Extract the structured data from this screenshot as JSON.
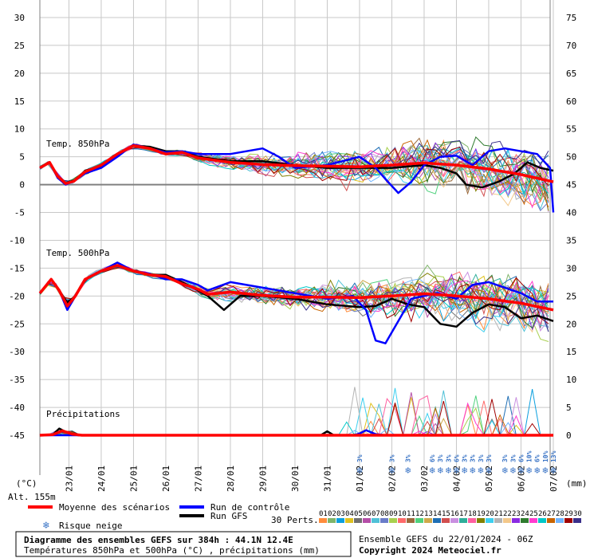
{
  "chart_data": {
    "type": "line",
    "title": "Diagramme des ensembles GEFS sur 384h : 44.1N 12.4E",
    "subtitle": "Températures 850hPa et 500hPa (°C) , précipitations (mm)",
    "left_axis_unit": "(°C)",
    "right_axis_unit": "(mm)",
    "altitude": "Alt. 155m",
    "left_ticks": [
      30,
      25,
      20,
      15,
      10,
      5,
      0,
      -5,
      -10,
      -15,
      -20,
      -25,
      -30,
      -35,
      -40,
      -45
    ],
    "right_ticks": [
      75,
      70,
      65,
      60,
      55,
      50,
      45,
      40,
      35,
      30,
      25,
      20,
      15,
      10,
      5,
      0
    ],
    "ylim": [
      -45,
      30
    ],
    "x_dates": [
      "23/01",
      "24/01",
      "25/01",
      "26/01",
      "27/01",
      "28/01",
      "29/01",
      "30/01",
      "31/01",
      "01/02",
      "02/02",
      "03/02",
      "04/02",
      "05/02",
      "06/02",
      "07/02"
    ],
    "xlim_days": [
      -0.9,
      15.0
    ],
    "panel_labels": {
      "t850": "Temp. 850hPa",
      "t500": "Temp. 500hPa",
      "precip": "Précipitations"
    },
    "series": [
      {
        "name": "Moyenne des scénarios",
        "color": "#ff0000",
        "t850": [
          [
            -0.9,
            3
          ],
          [
            -0.6,
            4
          ],
          [
            -0.35,
            1.5
          ],
          [
            -0.1,
            0.2
          ],
          [
            0.15,
            0.6
          ],
          [
            0.5,
            2.3
          ],
          [
            1,
            3.5
          ],
          [
            1.5,
            5.5
          ],
          [
            2,
            7
          ],
          [
            2.5,
            6.5
          ],
          [
            3,
            5.5
          ],
          [
            3.5,
            5.8
          ],
          [
            4,
            4.8
          ],
          [
            5,
            4
          ],
          [
            6,
            3.6
          ],
          [
            7,
            3.4
          ],
          [
            8,
            3.3
          ],
          [
            9,
            3.2
          ],
          [
            10,
            3.5
          ],
          [
            11,
            3.9
          ],
          [
            12,
            3.5
          ],
          [
            13,
            2.8
          ],
          [
            14,
            1.8
          ],
          [
            15,
            0.5
          ]
        ],
        "t500": [
          [
            -0.9,
            -19.5
          ],
          [
            -0.55,
            -17
          ],
          [
            -0.3,
            -19
          ],
          [
            -0.05,
            -21.8
          ],
          [
            0.2,
            -20
          ],
          [
            0.5,
            -17
          ],
          [
            1,
            -15.5
          ],
          [
            1.5,
            -14.5
          ],
          [
            2,
            -15.5
          ],
          [
            2.5,
            -16.2
          ],
          [
            3,
            -16.5
          ],
          [
            3.5,
            -17.8
          ],
          [
            4,
            -18.8
          ],
          [
            4.3,
            -19.7
          ],
          [
            5,
            -19.3
          ],
          [
            6,
            -19.9
          ],
          [
            7,
            -20.2
          ],
          [
            8,
            -20.2
          ],
          [
            9,
            -20.3
          ],
          [
            10,
            -20
          ],
          [
            11,
            -19.6
          ],
          [
            12,
            -20
          ],
          [
            13,
            -20.5
          ],
          [
            14,
            -21.3
          ],
          [
            15,
            -22.5
          ]
        ],
        "precip": [
          [
            -0.9,
            0
          ],
          [
            -0.5,
            0.1
          ],
          [
            -0.2,
            0.8
          ],
          [
            0.1,
            0.2
          ],
          [
            0.4,
            0
          ],
          [
            15,
            0
          ]
        ]
      },
      {
        "name": "Run de contrôle",
        "color": "#0000ff",
        "t850": [
          [
            -0.9,
            3
          ],
          [
            -0.6,
            4
          ],
          [
            -0.35,
            1.2
          ],
          [
            -0.1,
            0
          ],
          [
            0.2,
            0.8
          ],
          [
            0.5,
            2
          ],
          [
            1,
            3
          ],
          [
            1.5,
            5
          ],
          [
            2,
            7.2
          ],
          [
            2.5,
            6.5
          ],
          [
            3,
            5.8
          ],
          [
            3.5,
            6
          ],
          [
            4,
            5.5
          ],
          [
            5,
            5.5
          ],
          [
            6,
            6.5
          ],
          [
            6.5,
            5
          ],
          [
            7,
            3
          ],
          [
            8,
            3.5
          ],
          [
            9,
            5
          ],
          [
            9.5,
            3
          ],
          [
            9.8,
            1
          ],
          [
            10.2,
            -1.5
          ],
          [
            10.6,
            0.5
          ],
          [
            11,
            3.5
          ],
          [
            11.5,
            5
          ],
          [
            12,
            5.2
          ],
          [
            12.5,
            3.5
          ],
          [
            13,
            6
          ],
          [
            13.5,
            6.5
          ],
          [
            14,
            6
          ],
          [
            14.5,
            5.5
          ],
          [
            14.9,
            3
          ],
          [
            15,
            -5
          ]
        ],
        "t500": [
          [
            -0.9,
            -19.5
          ],
          [
            -0.55,
            -17
          ],
          [
            -0.3,
            -19
          ],
          [
            -0.05,
            -22.5
          ],
          [
            0.2,
            -20
          ],
          [
            0.5,
            -17
          ],
          [
            1,
            -15.5
          ],
          [
            1.5,
            -14
          ],
          [
            2,
            -15.5
          ],
          [
            2.5,
            -16
          ],
          [
            3,
            -17
          ],
          [
            3.5,
            -17
          ],
          [
            4,
            -18
          ],
          [
            4.3,
            -19
          ],
          [
            5,
            -17.5
          ],
          [
            6,
            -18.5
          ],
          [
            7,
            -19.5
          ],
          [
            7.5,
            -20
          ],
          [
            8,
            -20.5
          ],
          [
            8.8,
            -20
          ],
          [
            9.2,
            -22.5
          ],
          [
            9.5,
            -28
          ],
          [
            9.8,
            -28.5
          ],
          [
            10.2,
            -24.5
          ],
          [
            10.6,
            -20.5
          ],
          [
            11,
            -20
          ],
          [
            11.4,
            -19.5
          ],
          [
            12,
            -20.5
          ],
          [
            12.5,
            -18
          ],
          [
            13,
            -17.5
          ],
          [
            13.5,
            -18.5
          ],
          [
            14,
            -19.5
          ],
          [
            14.5,
            -21
          ],
          [
            15,
            -21
          ]
        ],
        "precip": [
          [
            -0.9,
            0
          ],
          [
            8.8,
            0
          ],
          [
            9,
            0.3
          ],
          [
            9.2,
            0.9
          ],
          [
            9.5,
            0.2
          ],
          [
            9.8,
            0
          ],
          [
            15,
            0
          ]
        ]
      },
      {
        "name": "Run GFS",
        "color": "#000000",
        "t850": [
          [
            -0.9,
            3
          ],
          [
            -0.6,
            4
          ],
          [
            -0.35,
            1.5
          ],
          [
            -0.1,
            0.3
          ],
          [
            0.2,
            0.8
          ],
          [
            0.5,
            2.5
          ],
          [
            1,
            3.3
          ],
          [
            1.5,
            5.5
          ],
          [
            2,
            7
          ],
          [
            2.5,
            6.8
          ],
          [
            3,
            6
          ],
          [
            3.5,
            6
          ],
          [
            4,
            5
          ],
          [
            5,
            4.2
          ],
          [
            6,
            4.2
          ],
          [
            7,
            3.5
          ],
          [
            8,
            3
          ],
          [
            9,
            3
          ],
          [
            10,
            3
          ],
          [
            11,
            3.5
          ],
          [
            11.5,
            3
          ],
          [
            12,
            2
          ],
          [
            12.3,
            0
          ],
          [
            12.8,
            -0.5
          ],
          [
            13.3,
            0.5
          ],
          [
            13.8,
            2
          ],
          [
            14.2,
            4
          ],
          [
            14.6,
            3
          ],
          [
            15,
            2.5
          ]
        ],
        "t500": [
          [
            -0.9,
            -19.5
          ],
          [
            -0.55,
            -17
          ],
          [
            -0.3,
            -19
          ],
          [
            -0.05,
            -21.2
          ],
          [
            0.2,
            -20
          ],
          [
            0.5,
            -17
          ],
          [
            1,
            -15.5
          ],
          [
            1.5,
            -14.5
          ],
          [
            2,
            -15.5
          ],
          [
            2.5,
            -16.2
          ],
          [
            3,
            -16.2
          ],
          [
            3.5,
            -17.5
          ],
          [
            4,
            -19
          ],
          [
            4.3,
            -20
          ],
          [
            4.8,
            -22.5
          ],
          [
            5.3,
            -20
          ],
          [
            6,
            -20
          ],
          [
            7,
            -20.5
          ],
          [
            8,
            -21.5
          ],
          [
            9,
            -22
          ],
          [
            9.5,
            -21.8
          ],
          [
            10,
            -20.5
          ],
          [
            10.5,
            -21.5
          ],
          [
            11,
            -22
          ],
          [
            11.5,
            -25
          ],
          [
            12,
            -25.5
          ],
          [
            12.5,
            -23
          ],
          [
            13,
            -21.5
          ],
          [
            13.5,
            -22
          ],
          [
            14,
            -24
          ],
          [
            14.5,
            -23.5
          ],
          [
            15,
            -24.5
          ]
        ],
        "precip": [
          [
            -0.9,
            0
          ],
          [
            -0.5,
            0.1
          ],
          [
            -0.3,
            1.2
          ],
          [
            0,
            0.3
          ],
          [
            0.3,
            0
          ],
          [
            7.8,
            0
          ],
          [
            8,
            0.7
          ],
          [
            8.2,
            0
          ],
          [
            15,
            0
          ]
        ]
      }
    ],
    "legend": {
      "mean_label": "Moyenne des scénarios",
      "control_label": "Run de contrôle",
      "gfs_label": "Run GFS",
      "snow_label": "Risque neige",
      "members_label": "30 Perts.",
      "member_numbers": [
        "01",
        "02",
        "03",
        "04",
        "05",
        "06",
        "07",
        "08",
        "09",
        "10",
        "11",
        "12",
        "13",
        "14",
        "15",
        "16",
        "17",
        "18",
        "19",
        "20",
        "21",
        "22",
        "23",
        "24",
        "25",
        "26",
        "27",
        "28",
        "29",
        "30"
      ],
      "member_colors": [
        "#ff8c3c",
        "#7fb56a",
        "#0a9fde",
        "#e0c21f",
        "#707070",
        "#b54ea8",
        "#50c1d7",
        "#6a7cc9",
        "#a8d04f",
        "#ff6a6a",
        "#9b6a3c",
        "#4fd17d",
        "#cfa94a",
        "#1f6fb5",
        "#d14f4f",
        "#c98fe0",
        "#2fae9a",
        "#ff5fa0",
        "#808000",
        "#3ccff0",
        "#b4b4b4",
        "#f3c88a",
        "#8a2be2",
        "#2f7b2f",
        "#ff3ccf",
        "#00c8c8",
        "#c86400",
        "#6fb4ff",
        "#a00000",
        "#3a2f8a"
      ]
    },
    "snow_risk": [
      {
        "day": 9.0,
        "value": "3%"
      },
      {
        "day": 10.0,
        "value": "3%"
      },
      {
        "day": 10.5,
        "value": "3%"
      },
      {
        "day": 11.25,
        "value": "6%"
      },
      {
        "day": 11.5,
        "value": "3%"
      },
      {
        "day": 11.75,
        "value": "3%"
      },
      {
        "day": 12.0,
        "value": "6%"
      },
      {
        "day": 12.25,
        "value": "3%"
      },
      {
        "day": 12.5,
        "value": "3%"
      },
      {
        "day": 12.75,
        "value": "3%"
      },
      {
        "day": 13.0,
        "value": "3%"
      },
      {
        "day": 13.5,
        "value": "3%"
      },
      {
        "day": 13.75,
        "value": "3%"
      },
      {
        "day": 14.0,
        "value": "6%"
      },
      {
        "day": 14.25,
        "value": "10%"
      },
      {
        "day": 14.5,
        "value": "6%"
      },
      {
        "day": 14.75,
        "value": "10%"
      },
      {
        "day": 15.0,
        "value": "13%"
      }
    ],
    "grid": true
  },
  "footer": {
    "title": "Diagramme des ensembles GEFS sur 384h : 44.1N 12.4E",
    "subtitle": "Températures 850hPa et 500hPa (°C) , précipitations (mm)",
    "run_info": "Ensemble GEFS du 22/01/2024 - 06Z",
    "copyright": "Copyright 2024 Meteociel.fr"
  }
}
